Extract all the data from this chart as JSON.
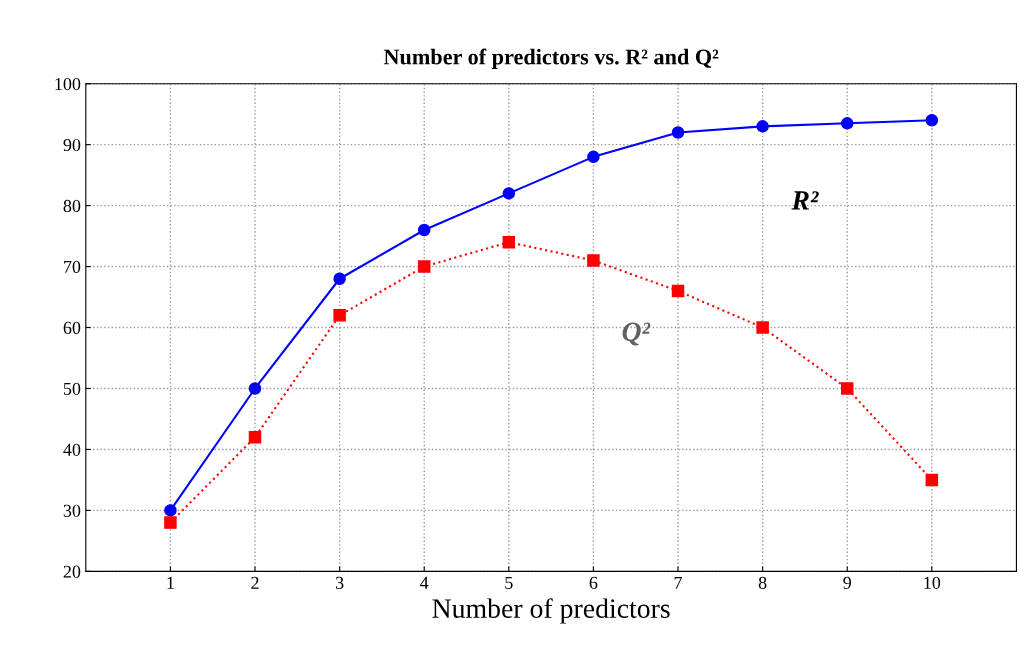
{
  "chart_data": {
    "type": "line",
    "title": "Number of predictors vs. R² and Q²",
    "xlabel": "Number of predictors",
    "x": [
      1,
      2,
      3,
      4,
      5,
      6,
      7,
      8,
      9,
      10
    ],
    "series": [
      {
        "name": "R²",
        "color": "#0000ff",
        "marker": "circle",
        "line_style": "solid",
        "values": [
          30,
          50,
          68,
          76,
          82,
          88,
          92,
          93,
          93.5,
          94
        ]
      },
      {
        "name": "Q²",
        "color": "#ff0000",
        "marker": "square",
        "line_style": "dotted",
        "values": [
          28,
          42,
          62,
          70,
          74,
          71,
          66,
          60,
          50,
          35
        ]
      }
    ],
    "xlim": [
      0,
      11
    ],
    "xticks": [
      1,
      2,
      3,
      4,
      5,
      6,
      7,
      8,
      9,
      10
    ],
    "ylim": [
      20,
      100
    ],
    "yticks": [
      20,
      30,
      40,
      50,
      60,
      70,
      80,
      90,
      100
    ],
    "grid": true,
    "legend": false
  }
}
